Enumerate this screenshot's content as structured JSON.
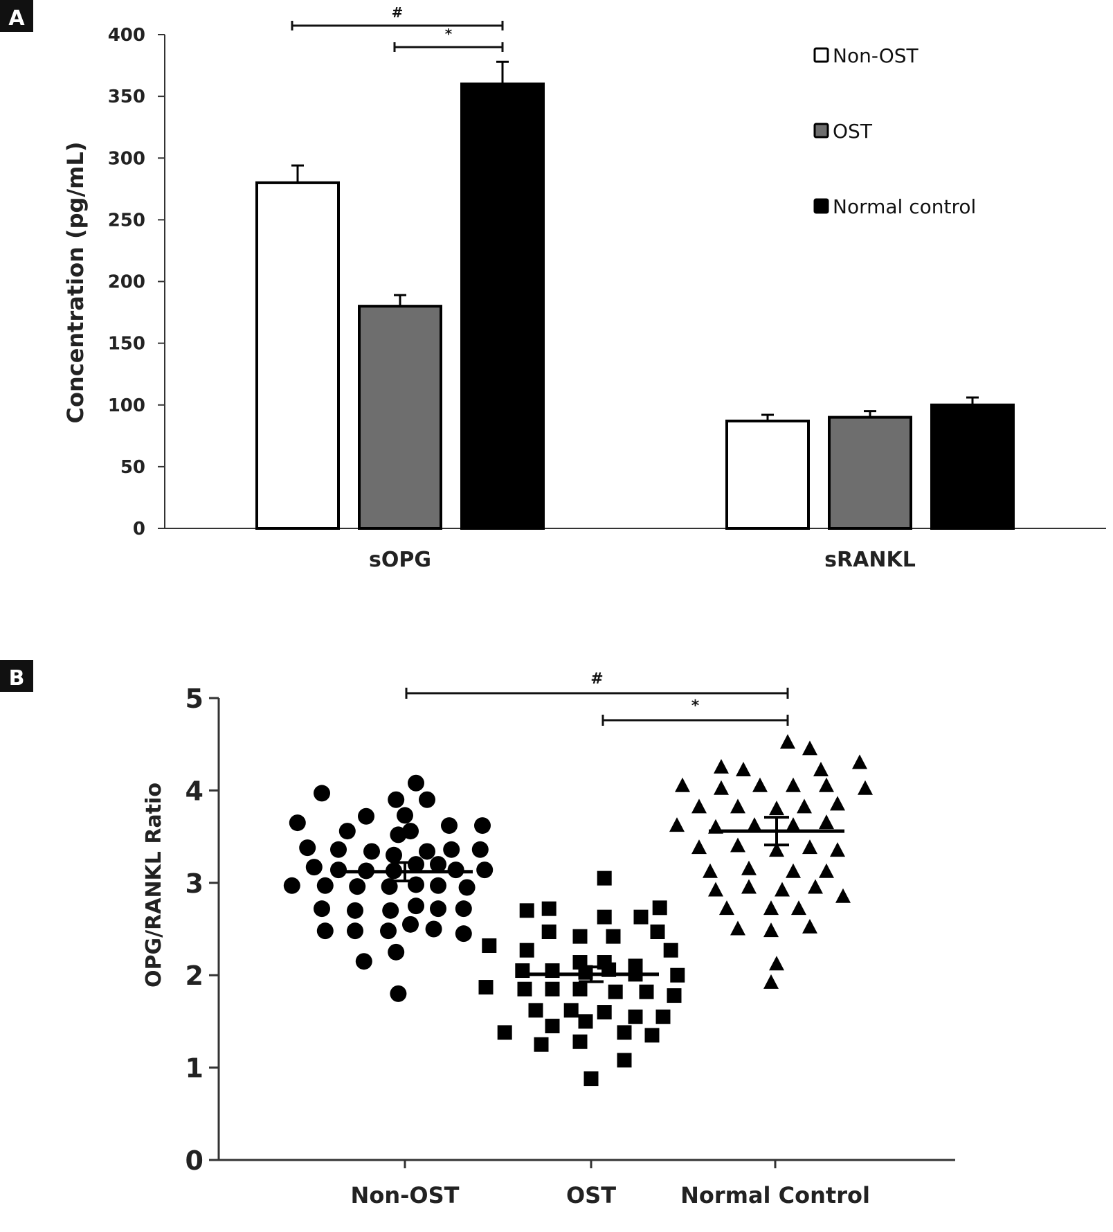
{
  "chart_data": [
    {
      "panel": "A",
      "type": "bar",
      "ylabel": "Concentration (pg/mL)",
      "ylim": [
        0,
        400
      ],
      "yticks": [
        0,
        50,
        100,
        150,
        200,
        250,
        300,
        350,
        400
      ],
      "categories": [
        "sOPG",
        "sRANKL"
      ],
      "legend_position": "top-right",
      "series": [
        {
          "name": "Non-OST",
          "color": "#ffffff",
          "values": [
            280,
            87
          ],
          "errors": [
            14,
            5
          ]
        },
        {
          "name": "OST",
          "color": "#6e6e6e",
          "values": [
            180,
            90
          ],
          "errors": [
            9,
            5
          ]
        },
        {
          "name": "Normal control",
          "color": "#000000",
          "values": [
            360,
            100
          ],
          "errors": [
            18,
            6
          ]
        }
      ],
      "annotations": [
        {
          "text": "#",
          "from_series": 0,
          "to_series": 2,
          "category": 0
        },
        {
          "text": "*",
          "from_series": 1,
          "to_series": 2,
          "category": 0
        }
      ]
    },
    {
      "panel": "B",
      "type": "scatter",
      "ylabel": "OPG/RANKL Ratio",
      "ylim": [
        0,
        5
      ],
      "yticks": [
        0,
        1,
        2,
        3,
        4,
        5
      ],
      "categories": [
        "Non-OST",
        "OST",
        "Normal Control"
      ],
      "groups": [
        {
          "marker": "circle",
          "mean": 3.12,
          "sem": 0.1,
          "points": [
            [
              -0.75,
              3.97
            ],
            [
              -0.08,
              3.9
            ],
            [
              0.2,
              3.9
            ],
            [
              -0.97,
              3.65
            ],
            [
              -0.52,
              3.56
            ],
            [
              -0.06,
              3.52
            ],
            [
              0.05,
              3.56
            ],
            [
              0.4,
              3.62
            ],
            [
              0.7,
              3.62
            ],
            [
              -0.88,
              3.38
            ],
            [
              -0.6,
              3.36
            ],
            [
              -0.3,
              3.34
            ],
            [
              -0.1,
              3.3
            ],
            [
              0.2,
              3.34
            ],
            [
              0.42,
              3.36
            ],
            [
              0.68,
              3.36
            ],
            [
              -0.82,
              3.17
            ],
            [
              -0.6,
              3.14
            ],
            [
              -0.35,
              3.13
            ],
            [
              -0.1,
              3.13
            ],
            [
              0.1,
              3.2
            ],
            [
              0.3,
              3.2
            ],
            [
              0.46,
              3.14
            ],
            [
              0.72,
              3.14
            ],
            [
              -1.02,
              2.97
            ],
            [
              -0.72,
              2.97
            ],
            [
              -0.43,
              2.96
            ],
            [
              -0.14,
              2.96
            ],
            [
              0.1,
              2.98
            ],
            [
              0.3,
              2.97
            ],
            [
              0.56,
              2.95
            ],
            [
              -0.75,
              2.72
            ],
            [
              -0.45,
              2.7
            ],
            [
              -0.13,
              2.7
            ],
            [
              0.1,
              2.75
            ],
            [
              0.3,
              2.72
            ],
            [
              0.53,
              2.72
            ],
            [
              -0.72,
              2.48
            ],
            [
              -0.45,
              2.48
            ],
            [
              -0.15,
              2.48
            ],
            [
              0.05,
              2.55
            ],
            [
              0.26,
              2.5
            ],
            [
              0.53,
              2.45
            ],
            [
              -0.37,
              2.15
            ],
            [
              -0.08,
              2.25
            ],
            [
              -0.06,
              1.8
            ],
            [
              0.1,
              4.08
            ],
            [
              -0.35,
              3.72
            ],
            [
              0.0,
              3.73
            ]
          ]
        },
        {
          "marker": "square",
          "mean": 2.01,
          "sem": 0.08,
          "points": [
            [
              0.12,
              3.05
            ],
            [
              -0.58,
              2.7
            ],
            [
              -0.38,
              2.72
            ],
            [
              0.12,
              2.63
            ],
            [
              0.45,
              2.63
            ],
            [
              0.62,
              2.73
            ],
            [
              -0.38,
              2.47
            ],
            [
              -0.1,
              2.42
            ],
            [
              0.2,
              2.42
            ],
            [
              0.6,
              2.47
            ],
            [
              -0.92,
              2.32
            ],
            [
              -0.58,
              2.27
            ],
            [
              -0.1,
              2.14
            ],
            [
              0.12,
              2.14
            ],
            [
              0.4,
              2.1
            ],
            [
              0.72,
              2.27
            ],
            [
              -0.62,
              2.05
            ],
            [
              -0.35,
              2.05
            ],
            [
              -0.05,
              2.03
            ],
            [
              0.16,
              2.06
            ],
            [
              0.4,
              2.01
            ],
            [
              0.78,
              2.0
            ],
            [
              -0.95,
              1.87
            ],
            [
              -0.6,
              1.85
            ],
            [
              -0.35,
              1.85
            ],
            [
              -0.1,
              1.85
            ],
            [
              0.22,
              1.82
            ],
            [
              0.5,
              1.82
            ],
            [
              0.75,
              1.78
            ],
            [
              -0.5,
              1.62
            ],
            [
              -0.18,
              1.62
            ],
            [
              0.12,
              1.6
            ],
            [
              0.4,
              1.55
            ],
            [
              0.65,
              1.55
            ],
            [
              -0.78,
              1.38
            ],
            [
              -0.35,
              1.45
            ],
            [
              -0.05,
              1.5
            ],
            [
              0.3,
              1.38
            ],
            [
              0.55,
              1.35
            ],
            [
              -0.45,
              1.25
            ],
            [
              -0.1,
              1.28
            ],
            [
              0.3,
              1.08
            ],
            [
              0.0,
              0.88
            ]
          ]
        },
        {
          "marker": "triangle",
          "mean": 3.56,
          "sem": 0.15,
          "points": [
            [
              0.1,
              4.52
            ],
            [
              0.3,
              4.45
            ],
            [
              -0.5,
              4.25
            ],
            [
              -0.3,
              4.22
            ],
            [
              0.4,
              4.22
            ],
            [
              0.75,
              4.3
            ],
            [
              -0.85,
              4.05
            ],
            [
              -0.5,
              4.02
            ],
            [
              -0.15,
              4.05
            ],
            [
              0.15,
              4.05
            ],
            [
              0.45,
              4.05
            ],
            [
              0.8,
              4.02
            ],
            [
              -0.7,
              3.82
            ],
            [
              -0.35,
              3.82
            ],
            [
              0.0,
              3.8
            ],
            [
              0.25,
              3.82
            ],
            [
              0.55,
              3.85
            ],
            [
              -0.9,
              3.62
            ],
            [
              -0.55,
              3.6
            ],
            [
              -0.2,
              3.62
            ],
            [
              0.15,
              3.62
            ],
            [
              0.45,
              3.65
            ],
            [
              -0.7,
              3.38
            ],
            [
              -0.35,
              3.4
            ],
            [
              0.0,
              3.35
            ],
            [
              0.3,
              3.38
            ],
            [
              0.55,
              3.35
            ],
            [
              -0.6,
              3.12
            ],
            [
              -0.25,
              3.15
            ],
            [
              0.15,
              3.12
            ],
            [
              0.45,
              3.12
            ],
            [
              -0.55,
              2.92
            ],
            [
              -0.25,
              2.95
            ],
            [
              0.05,
              2.92
            ],
            [
              0.35,
              2.95
            ],
            [
              -0.45,
              2.72
            ],
            [
              -0.05,
              2.72
            ],
            [
              0.2,
              2.72
            ],
            [
              0.6,
              2.85
            ],
            [
              -0.35,
              2.5
            ],
            [
              -0.05,
              2.48
            ],
            [
              0.3,
              2.52
            ],
            [
              0.0,
              2.12
            ],
            [
              -0.05,
              1.92
            ]
          ]
        }
      ],
      "annotations": [
        {
          "text": "#",
          "from_group": 0,
          "to_group": 2
        },
        {
          "text": "*",
          "from_group": 1,
          "to_group": 2
        }
      ]
    }
  ],
  "panel_labels": [
    "A",
    "B"
  ]
}
